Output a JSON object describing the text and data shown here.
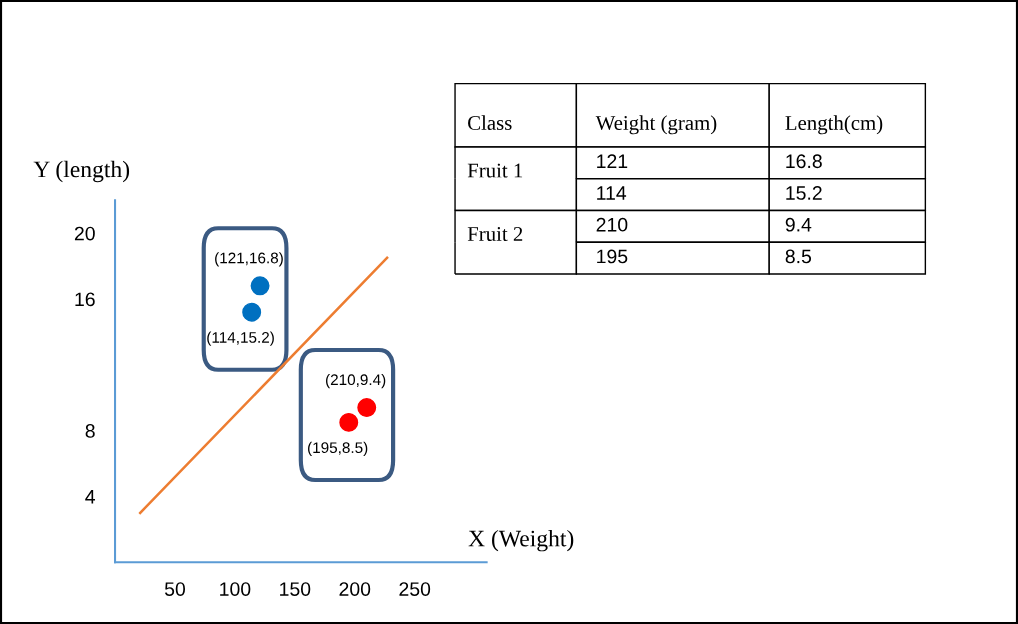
{
  "chart_data": {
    "type": "scatter",
    "xlabel": "X (Weight)",
    "ylabel": "Y (length)",
    "xlim": [
      0,
      310
    ],
    "ylim": [
      0,
      22
    ],
    "xticks": [
      50,
      100,
      150,
      200,
      250
    ],
    "yticks": [
      4,
      8,
      16,
      20
    ],
    "marker": "circle",
    "annotations": [
      "Class",
      "Weight (gram)",
      "Length(cm)",
      "121",
      "16.8",
      "114",
      "15.2",
      "210",
      "9.4",
      "195",
      "8.5"
    ],
    "series": [
      {
        "name": "Fruit 1",
        "color": "#0070c0",
        "x": [
          121,
          114
        ],
        "values": [
          16.8,
          15.2
        ],
        "value_labels": [
          "(121,16.8)",
          "(114,15.2)"
        ]
      },
      {
        "name": "Fruit 2",
        "color": "#ff0000",
        "x": [
          210,
          195
        ],
        "values": [
          9.4,
          8.5
        ],
        "value_labels": [
          "(210,9.4)",
          "(195,8.5)"
        ]
      },
      {
        "type": "line",
        "marker": "none",
        "color": "#ed7d31",
        "x": [
          21,
          227
        ],
        "values": [
          3,
          18.5
        ]
      }
    ]
  }
}
